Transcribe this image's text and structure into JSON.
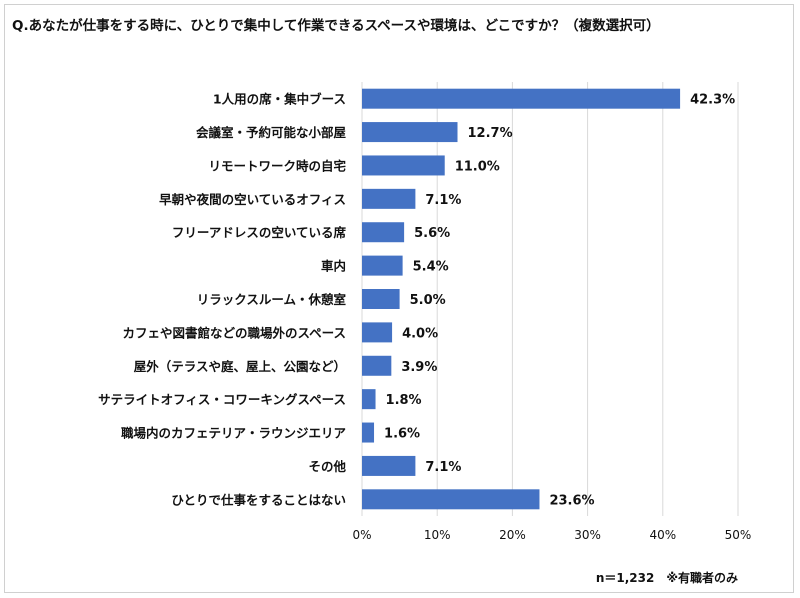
{
  "title": "Q.あなたが仕事をする時に、ひとりで集中して作業できるスペースや環境は、どこですか？（複数選択可）",
  "note": "n＝1,232　※有職者のみ",
  "colors": {
    "bar": "#4472C4",
    "grid": "#d9d9d9",
    "text": "#111111"
  },
  "chart_data": {
    "type": "bar",
    "orientation": "horizontal",
    "categories": [
      "1人用の席・集中ブース",
      "会議室・予約可能な小部屋",
      "リモートワーク時の自宅",
      "早朝や夜間の空いているオフィス",
      "フリーアドレスの空いている席",
      "車内",
      "リラックスルーム・休憩室",
      "カフェや図書館などの職場外のスペース",
      "屋外（テラスや庭、屋上、公園など）",
      "サテライトオフィス・コワーキングスペース",
      "職場内のカフェテリア・ラウンジエリア",
      "その他",
      "ひとりで仕事をすることはない"
    ],
    "values": [
      42.3,
      12.7,
      11.0,
      7.1,
      5.6,
      5.4,
      5.0,
      4.0,
      3.9,
      1.8,
      1.6,
      7.1,
      23.6
    ],
    "value_labels": [
      "42.3%",
      "12.7%",
      "11.0%",
      "7.1%",
      "5.6%",
      "5.4%",
      "5.0%",
      "4.0%",
      "3.9%",
      "1.8%",
      "1.6%",
      "7.1%",
      "23.6%"
    ],
    "xlim": [
      0,
      50
    ],
    "xticks": [
      0,
      10,
      20,
      30,
      40,
      50
    ],
    "xtick_labels": [
      "0%",
      "10%",
      "20%",
      "30%",
      "40%",
      "50%"
    ],
    "grid": true
  }
}
